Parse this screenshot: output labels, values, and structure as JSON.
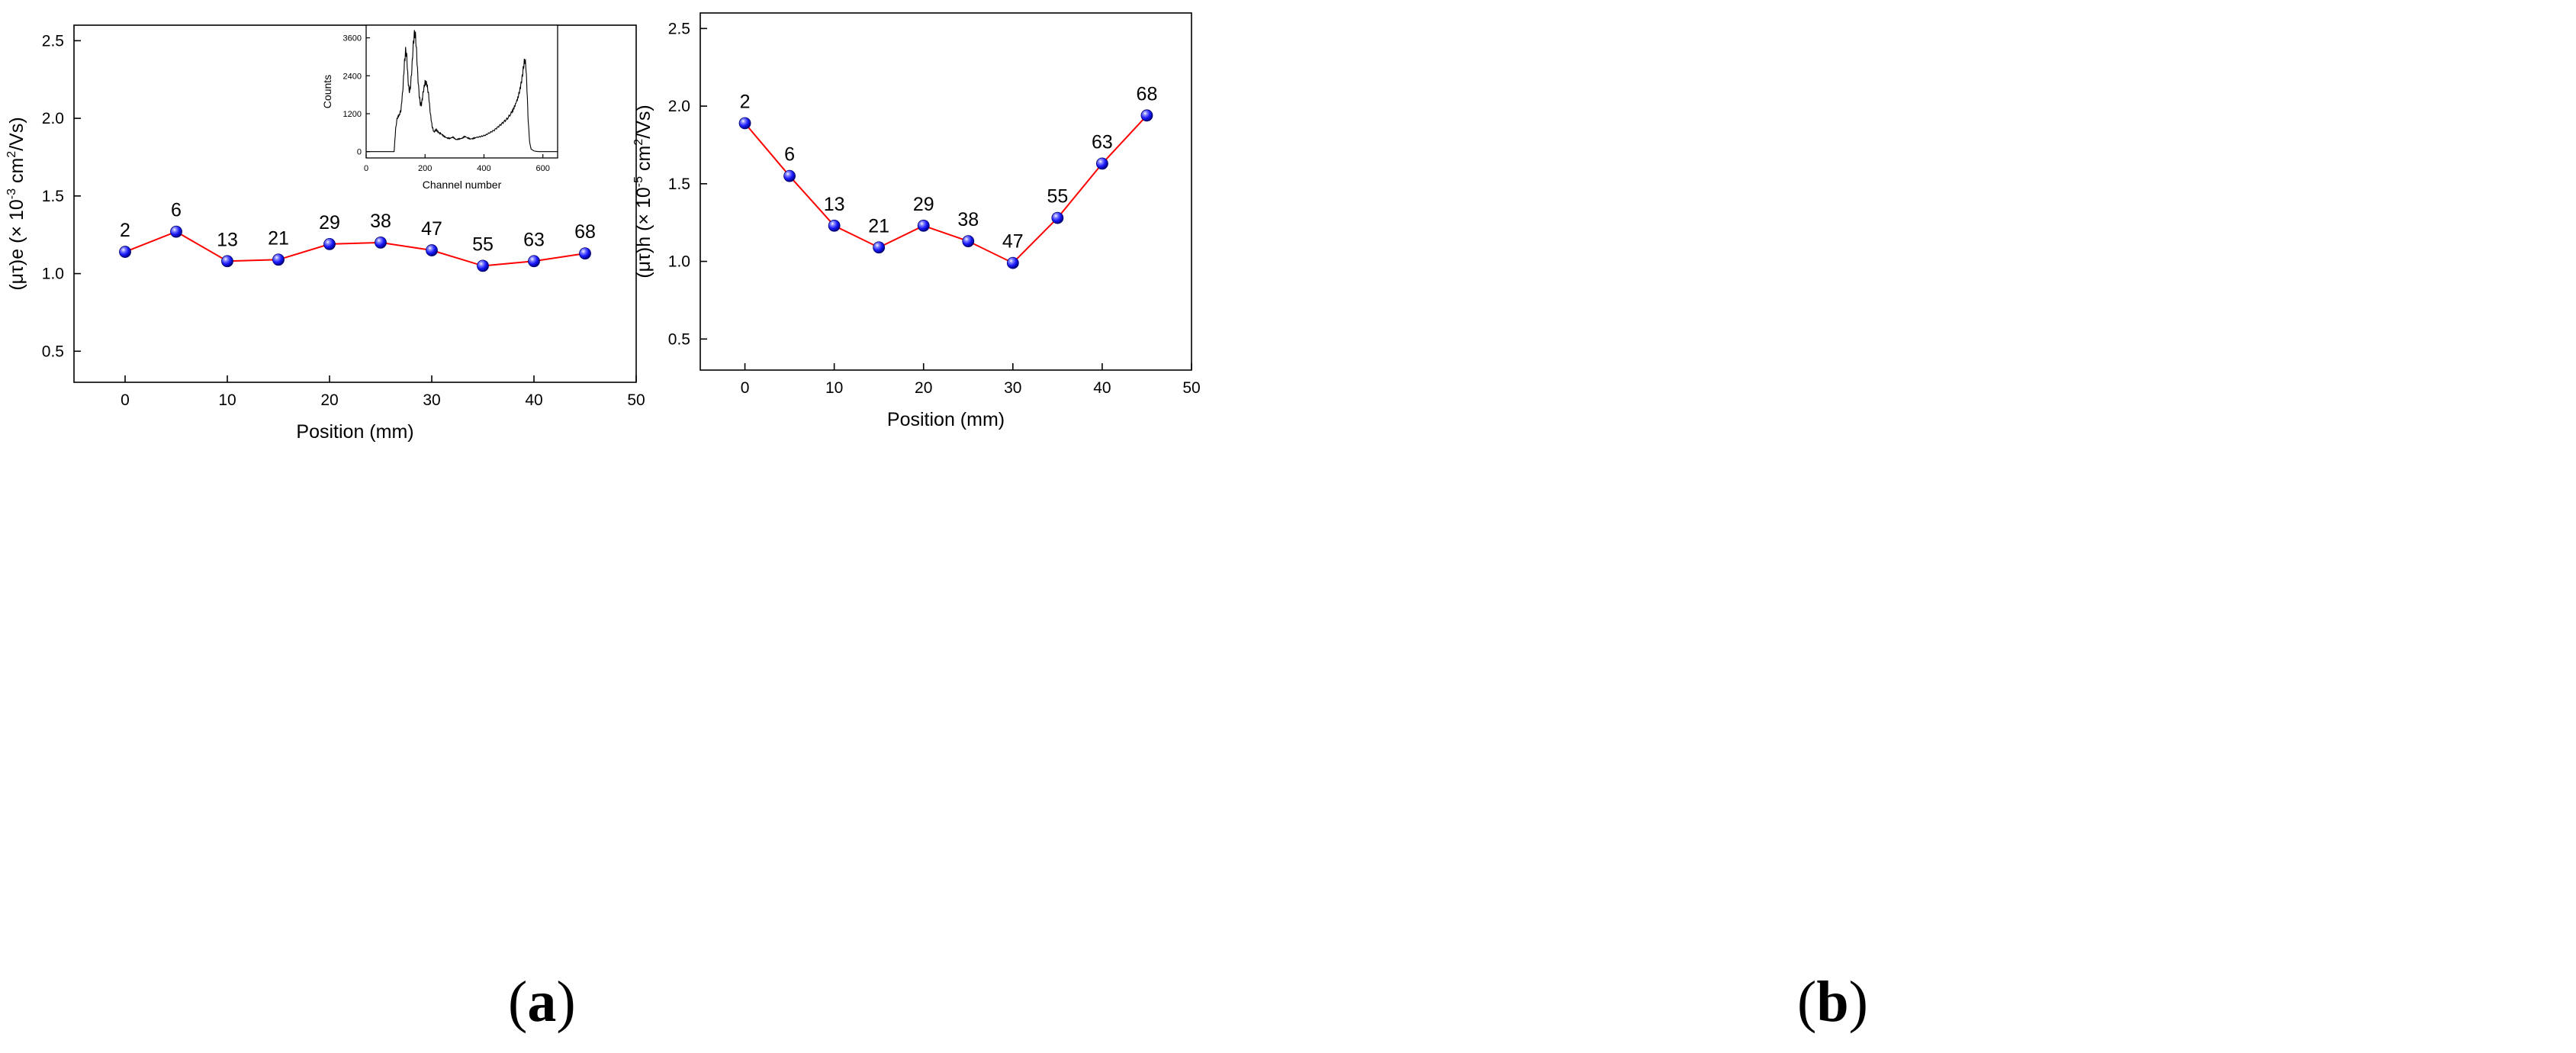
{
  "captions": {
    "a": {
      "open": "(",
      "letter": "a",
      "close": ")"
    },
    "b": {
      "open": "(",
      "letter": "b",
      "close": ")"
    }
  },
  "chart_data": [
    {
      "id": "a",
      "type": "line",
      "title": "",
      "xlabel": "Position (mm)",
      "ylabel": {
        "prefix": "(μτ)e (× 10",
        "exp": "-3",
        "mid": " cm",
        "exp2": "2",
        "suffix": "/Vs)"
      },
      "xlim": [
        -5,
        50
      ],
      "ylim": [
        0.3,
        2.6
      ],
      "xticks": [
        0,
        10,
        20,
        30,
        40,
        50
      ],
      "yticks": [
        0.5,
        1.0,
        1.5,
        2.0,
        2.5
      ],
      "ytick_labels": [
        "0.5",
        "1.0",
        "1.5",
        "2.0",
        "2.5"
      ],
      "x": [
        0,
        5,
        10,
        15,
        20,
        25,
        30,
        35,
        40,
        45
      ],
      "y": [
        1.14,
        1.27,
        1.08,
        1.09,
        1.19,
        1.2,
        1.15,
        1.05,
        1.08,
        1.13
      ],
      "point_labels": [
        "2",
        "6",
        "13",
        "21",
        "29",
        "38",
        "47",
        "55",
        "63",
        "68"
      ],
      "line_color": "#ff0000",
      "marker_color": "#1a1aff",
      "inset": {
        "type": "line",
        "xlabel": "Channel number",
        "ylabel": "Counts",
        "xlim": [
          0,
          650
        ],
        "ylim": [
          -200,
          4000
        ],
        "xticks": [
          0,
          200,
          400,
          600
        ],
        "yticks": [
          0,
          1200,
          2400,
          3600
        ],
        "spectrum": [
          [
            0,
            0
          ],
          [
            85,
            0
          ],
          [
            95,
            0
          ],
          [
            100,
            700
          ],
          [
            105,
            1050
          ],
          [
            112,
            1150
          ],
          [
            118,
            1300
          ],
          [
            124,
            1900
          ],
          [
            130,
            2800
          ],
          [
            134,
            3200
          ],
          [
            138,
            3000
          ],
          [
            142,
            2300
          ],
          [
            146,
            1900
          ],
          [
            150,
            2000
          ],
          [
            155,
            2600
          ],
          [
            160,
            3400
          ],
          [
            164,
            3750
          ],
          [
            168,
            3650
          ],
          [
            172,
            3000
          ],
          [
            176,
            2300
          ],
          [
            180,
            1800
          ],
          [
            184,
            1500
          ],
          [
            188,
            1500
          ],
          [
            194,
            1900
          ],
          [
            200,
            2200
          ],
          [
            206,
            2150
          ],
          [
            212,
            1800
          ],
          [
            218,
            1200
          ],
          [
            224,
            800
          ],
          [
            230,
            620
          ],
          [
            238,
            700
          ],
          [
            246,
            600
          ],
          [
            255,
            560
          ],
          [
            265,
            480
          ],
          [
            275,
            430
          ],
          [
            285,
            420
          ],
          [
            295,
            460
          ],
          [
            305,
            380
          ],
          [
            315,
            400
          ],
          [
            325,
            420
          ],
          [
            335,
            480
          ],
          [
            345,
            430
          ],
          [
            355,
            400
          ],
          [
            365,
            420
          ],
          [
            375,
            450
          ],
          [
            390,
            480
          ],
          [
            405,
            520
          ],
          [
            420,
            600
          ],
          [
            435,
            680
          ],
          [
            450,
            800
          ],
          [
            465,
            920
          ],
          [
            480,
            1050
          ],
          [
            495,
            1250
          ],
          [
            505,
            1450
          ],
          [
            515,
            1700
          ],
          [
            522,
            1950
          ],
          [
            528,
            2250
          ],
          [
            533,
            2600
          ],
          [
            538,
            2900
          ],
          [
            542,
            2750
          ],
          [
            546,
            2000
          ],
          [
            550,
            1000
          ],
          [
            555,
            300
          ],
          [
            560,
            80
          ],
          [
            570,
            20
          ],
          [
            585,
            0
          ],
          [
            650,
            0
          ]
        ]
      }
    },
    {
      "id": "b",
      "type": "line",
      "title": "",
      "xlabel": "Position (mm)",
      "ylabel": {
        "prefix": "(μτ)h (× 10",
        "exp": "-5",
        "mid": " cm",
        "exp2": "2",
        "suffix": "/Vs)"
      },
      "xlim": [
        -5,
        50
      ],
      "ylim": [
        0.3,
        2.6
      ],
      "xticks": [
        0,
        10,
        20,
        30,
        40,
        50
      ],
      "yticks": [
        0.5,
        1.0,
        1.5,
        2.0,
        2.5
      ],
      "ytick_labels": [
        "0.5",
        "1.0",
        "1.5",
        "2.0",
        "2.5"
      ],
      "x": [
        0,
        5,
        10,
        15,
        20,
        25,
        30,
        35,
        40,
        45
      ],
      "y": [
        1.89,
        1.55,
        1.23,
        1.09,
        1.23,
        1.13,
        0.99,
        1.28,
        1.63,
        1.94
      ],
      "point_labels": [
        "2",
        "6",
        "13",
        "21",
        "29",
        "38",
        "47",
        "55",
        "63",
        "68"
      ],
      "line_color": "#ff0000",
      "marker_color": "#1a1aff"
    }
  ]
}
